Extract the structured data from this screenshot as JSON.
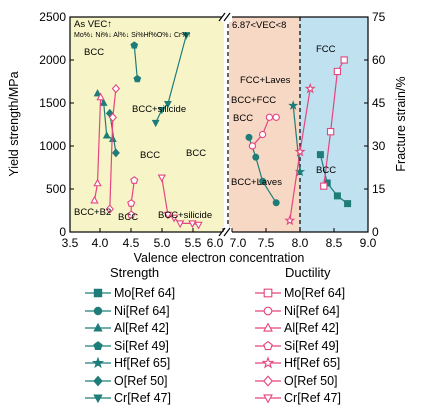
{
  "chart_data": {
    "type": "scatter",
    "xlabel": "Valence electron concentration",
    "ylabel_left": "Yield strength/MPa",
    "ylabel_right": "Fracture strain/%",
    "xlim": [
      3.5,
      9.0
    ],
    "x_ticks": [
      "3.5",
      "4.0",
      "4.5",
      "5.0",
      "5.5",
      "6.0",
      "7.0",
      "7.5",
      "8.0",
      "8.5",
      "9.0"
    ],
    "ylim_left": [
      0,
      2500
    ],
    "y_ticks_left": [
      "0",
      "500",
      "1000",
      "1500",
      "2000",
      "2500"
    ],
    "ylim_right": [
      0,
      75
    ],
    "y_ticks_right": [
      "0",
      "15",
      "30",
      "45",
      "60",
      "75"
    ],
    "axis_break_note": "x-axis broken between 6.0 and 7.0",
    "regions": [
      {
        "x_from": 3.5,
        "x_to": 6.0,
        "color": "#f7f5c8"
      },
      {
        "x_from": 7.0,
        "x_to": 8.0,
        "color": "#f7d8c4"
      },
      {
        "x_from": 8.0,
        "x_to": 9.0,
        "color": "#bfe1f0"
      }
    ],
    "region_labels": {
      "middle": "6.87<VEC<8"
    },
    "top_note": "As VEC↑",
    "top_note_sub": "Mo%↓ Ni%↓ Al%↓ Si%Hf%O%↓ Cr%↑",
    "annotations": [
      "BCC+B2",
      "BCC",
      "BCC",
      "BCC",
      "BCC+silicide",
      "BCC",
      "BCC+silicide",
      "BCC+FCC",
      "BCC",
      "BCC+Laves",
      "FCC+Laves",
      "FCC",
      "BCC"
    ],
    "legend_headers": [
      "Strength",
      "Ductility"
    ],
    "strength_series": [
      {
        "name": "Mo[Ref 64]",
        "marker": "square",
        "color": "#1e7d78",
        "x": [
          8.3,
          8.4,
          8.55,
          8.7
        ],
        "y": [
          900,
          570,
          420,
          330
        ]
      },
      {
        "name": "Ni[Ref 64]",
        "marker": "circle",
        "color": "#1e7d78",
        "x": [
          7.25,
          7.35,
          7.45,
          7.65
        ],
        "y": [
          1100,
          870,
          590,
          340
        ]
      },
      {
        "name": "Al[Ref 42]",
        "marker": "triangle-up",
        "color": "#1e7d78",
        "x": [
          3.95,
          4.05,
          4.1,
          4.2
        ],
        "y": [
          1610,
          1500,
          1120,
          1080
        ]
      },
      {
        "name": "Si[Ref 49]",
        "marker": "pentagon",
        "color": "#1e7d78",
        "x": [
          4.55,
          4.6
        ],
        "y": [
          2170,
          1780
        ]
      },
      {
        "name": "Hf[Ref 65]",
        "marker": "star",
        "color": "#1e7d78",
        "x": [
          7.9,
          8.0
        ],
        "y": [
          1470,
          700
        ]
      },
      {
        "name": "O[Ref 50]",
        "marker": "diamond",
        "color": "#1e7d78",
        "x": [
          4.15,
          4.25
        ],
        "y": [
          1380,
          920
        ]
      },
      {
        "name": "Cr[Ref 47]",
        "marker": "triangle-down",
        "color": "#1e7d78",
        "x": [
          4.9,
          5.0,
          5.1,
          5.4
        ],
        "y": [
          1270,
          1420,
          1490,
          2290
        ]
      }
    ],
    "ductility_series": [
      {
        "name": "Mo[Ref 64]",
        "marker": "square",
        "color": "#e5457f",
        "x": [
          8.35,
          8.45,
          8.55,
          8.65
        ],
        "y": [
          16,
          35,
          56,
          60
        ]
      },
      {
        "name": "Ni[Ref 64]",
        "marker": "circle",
        "color": "#e5457f",
        "x": [
          7.3,
          7.45,
          7.55,
          7.65
        ],
        "y": [
          30,
          34,
          40,
          40
        ]
      },
      {
        "name": "Al[Ref 42]",
        "marker": "triangle-up",
        "color": "#e5457f",
        "x": [
          3.9,
          3.95,
          4.0
        ],
        "y": [
          11,
          17,
          47
        ]
      },
      {
        "name": "Si[Ref 49]",
        "marker": "pentagon",
        "color": "#e5457f",
        "x": [
          4.5,
          4.5,
          4.55
        ],
        "y": [
          6,
          10,
          18
        ]
      },
      {
        "name": "Hf[Ref 65]",
        "marker": "star",
        "color": "#e5457f",
        "x": [
          7.85,
          8.0,
          8.15
        ],
        "y": [
          4,
          28,
          50
        ]
      },
      {
        "name": "O[Ref 50]",
        "marker": "diamond",
        "color": "#e5457f",
        "x": [
          4.15,
          4.2,
          4.25
        ],
        "y": [
          8,
          40,
          50
        ]
      },
      {
        "name": "Cr[Ref 47]",
        "marker": "triangle-down",
        "color": "#e5457f",
        "x": [
          5.0,
          5.1,
          5.2,
          5.3,
          5.5,
          5.6
        ],
        "y": [
          19,
          6,
          5,
          3,
          3,
          2.5
        ]
      }
    ]
  }
}
